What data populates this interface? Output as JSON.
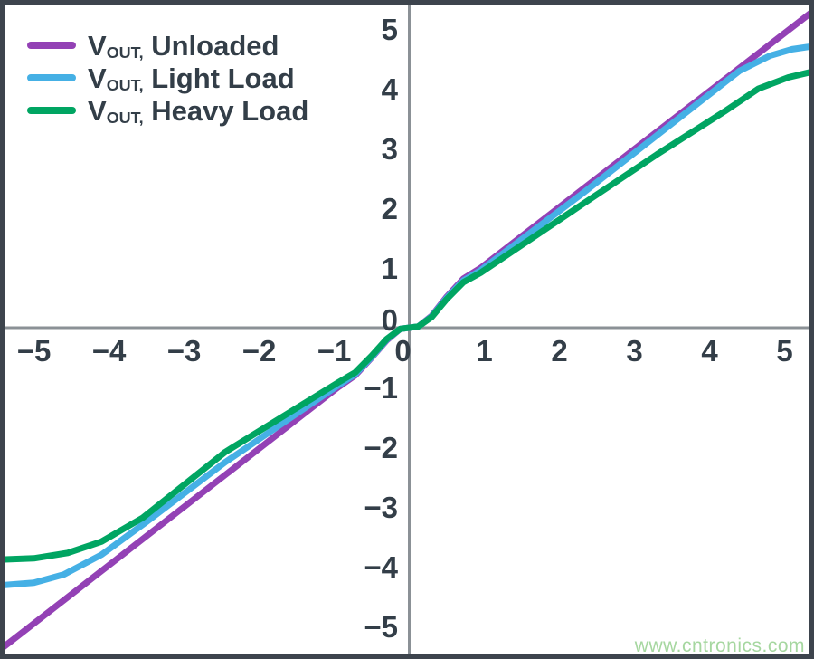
{
  "colors": {
    "unloaded": "#9341b5",
    "light_load": "#45b0e5",
    "heavy_load": "#00a562",
    "text": "#333e48",
    "axis": "#8b9196",
    "frame": "#3d444d",
    "watermark": "#a6d7a0"
  },
  "legend": {
    "items": [
      {
        "sym": "V",
        "sub": "OUT,",
        "rest": " Unloaded",
        "color_key": "unloaded"
      },
      {
        "sym": "V",
        "sub": "OUT,",
        "rest": " Light Load",
        "color_key": "light_load"
      },
      {
        "sym": "V",
        "sub": "OUT,",
        "rest": " Heavy Load",
        "color_key": "heavy_load"
      }
    ]
  },
  "watermark": "www.cntronics.com",
  "chart_data": {
    "type": "line",
    "title": "",
    "xlabel": "",
    "ylabel": "",
    "xlim": [
      -5.42,
      5.42
    ],
    "ylim": [
      -5.5,
      5.5
    ],
    "x_ticks": [
      -5,
      -4,
      -3,
      -2,
      -1,
      0,
      1,
      2,
      3,
      4,
      5
    ],
    "y_ticks": [
      5,
      4,
      3,
      2,
      1,
      0,
      -1,
      -2,
      -3,
      -4,
      -5
    ],
    "grid": false,
    "axes_cross_at_origin": true,
    "legend_position": "top-left",
    "series": [
      {
        "name": "VOUT, Unloaded",
        "color_key": "unloaded",
        "points": [
          [
            -5.42,
            -5.36
          ],
          [
            -0.95,
            -1.0
          ],
          [
            -0.72,
            -0.8
          ],
          [
            -0.5,
            -0.5
          ],
          [
            -0.3,
            -0.21
          ],
          [
            -0.12,
            -0.02
          ],
          [
            0.12,
            0.02
          ],
          [
            0.3,
            0.2
          ],
          [
            0.5,
            0.52
          ],
          [
            0.72,
            0.82
          ],
          [
            0.95,
            1.0
          ],
          [
            5.42,
            5.34
          ]
        ]
      },
      {
        "name": "VOUT, Light Load",
        "color_key": "light_load",
        "points": [
          [
            -5.42,
            -4.31
          ],
          [
            -5.0,
            -4.27
          ],
          [
            -4.6,
            -4.13
          ],
          [
            -4.1,
            -3.8
          ],
          [
            -3.5,
            -3.25
          ],
          [
            -2.45,
            -2.25
          ],
          [
            -0.95,
            -0.97
          ],
          [
            -0.72,
            -0.78
          ],
          [
            -0.5,
            -0.49
          ],
          [
            -0.3,
            -0.2
          ],
          [
            -0.12,
            -0.02
          ],
          [
            0.12,
            0.02
          ],
          [
            0.3,
            0.19
          ],
          [
            0.5,
            0.5
          ],
          [
            0.72,
            0.79
          ],
          [
            0.95,
            0.96
          ],
          [
            2.3,
            2.24
          ],
          [
            4.4,
            4.3
          ],
          [
            4.8,
            4.55
          ],
          [
            5.1,
            4.66
          ],
          [
            5.42,
            4.72
          ]
        ]
      },
      {
        "name": "VOUT, Heavy Load",
        "color_key": "heavy_load",
        "points": [
          [
            -5.42,
            -3.88
          ],
          [
            -5.0,
            -3.86
          ],
          [
            -4.55,
            -3.77
          ],
          [
            -4.1,
            -3.58
          ],
          [
            -3.55,
            -3.18
          ],
          [
            -2.45,
            -2.08
          ],
          [
            -0.95,
            -0.92
          ],
          [
            -0.72,
            -0.75
          ],
          [
            -0.5,
            -0.47
          ],
          [
            -0.3,
            -0.19
          ],
          [
            -0.12,
            -0.02
          ],
          [
            0.12,
            0.02
          ],
          [
            0.3,
            0.18
          ],
          [
            0.5,
            0.48
          ],
          [
            0.72,
            0.76
          ],
          [
            0.95,
            0.92
          ],
          [
            2.3,
            2.06
          ],
          [
            3.3,
            2.9
          ],
          [
            4.2,
            3.62
          ],
          [
            4.65,
            4.0
          ],
          [
            5.05,
            4.19
          ],
          [
            5.42,
            4.3
          ]
        ]
      }
    ]
  }
}
